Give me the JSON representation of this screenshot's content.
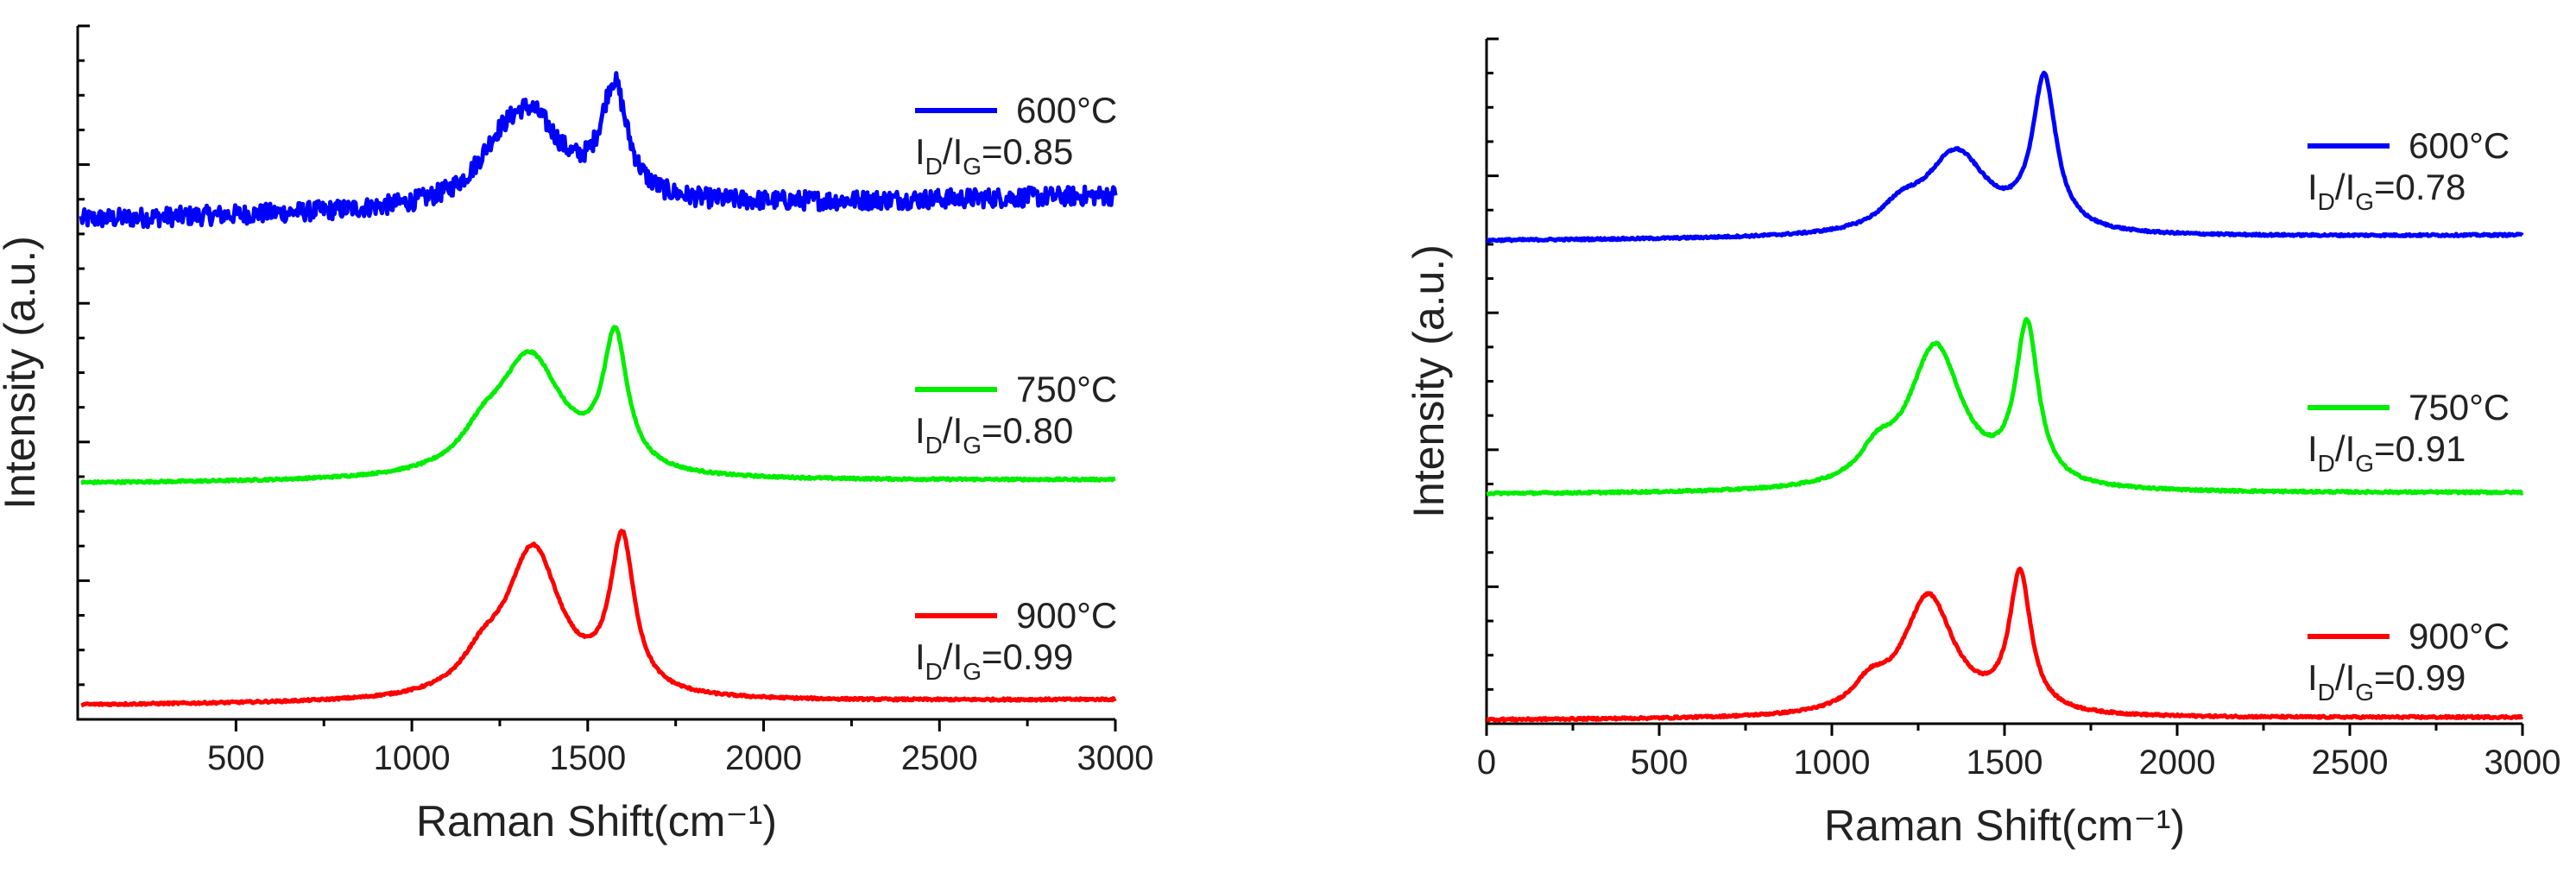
{
  "chart_data": [
    {
      "type": "line",
      "xlabel": "Raman Shift(cm⁻¹)",
      "ylabel": "Intensity (a.u.)",
      "xlim": [
        50,
        3000
      ],
      "ylim": [
        0,
        10
      ],
      "xticks": [
        "500",
        "1000",
        "1500",
        "2000",
        "2500",
        "3000"
      ],
      "series": [
        {
          "name": "600°C",
          "ratio_label": "I",
          "ratio_sub_d": "D",
          "ratio_sub_g": "G",
          "ratio_value": "=0.85",
          "color": "#0000ff",
          "noisy": true,
          "base": 7.35,
          "slope": 0.35,
          "offset": 7.2,
          "peaks": [
            {
              "x": 1335,
              "h": 1.3,
              "w": 110
            },
            {
              "x": 1575,
              "h": 1.6,
              "w": 45
            },
            {
              "x": 1240,
              "h": 0.35,
              "w": 70
            }
          ]
        },
        {
          "name": "750°C",
          "ratio_label": "I",
          "ratio_sub_d": "D",
          "ratio_sub_g": "G",
          "ratio_value": "=0.80",
          "color": "#00ee00",
          "noisy": false,
          "base": 3.45,
          "slope": 0.05,
          "offset": 3.4,
          "peaks": [
            {
              "x": 1335,
              "h": 1.75,
              "w": 115
            },
            {
              "x": 1578,
              "h": 1.9,
              "w": 42
            },
            {
              "x": 1200,
              "h": 0.35,
              "w": 70
            }
          ]
        },
        {
          "name": "900°C",
          "ratio_label": "I",
          "ratio_sub_d": "D",
          "ratio_sub_g": "G",
          "ratio_value": "=0.99",
          "color": "#ff0000",
          "noisy": false,
          "base": 0.25,
          "slope": 0.08,
          "offset": 0.2,
          "peaks": [
            {
              "x": 1345,
              "h": 2.15,
              "w": 95
            },
            {
              "x": 1598,
              "h": 2.2,
              "w": 42
            },
            {
              "x": 1200,
              "h": 0.4,
              "w": 70
            }
          ]
        }
      ]
    },
    {
      "type": "line",
      "xlabel": "Raman Shift(cm⁻¹)",
      "ylabel": "Intensity (a.u.)",
      "xlim": [
        0,
        3000
      ],
      "ylim": [
        0,
        10
      ],
      "xticks": [
        "0",
        "500",
        "1000",
        "1500",
        "2000",
        "2500",
        "3000"
      ],
      "series": [
        {
          "name": "600°C",
          "ratio_label": "I",
          "ratio_sub_d": "D",
          "ratio_sub_g": "G",
          "ratio_value": "=0.78",
          "color": "#0000ff",
          "noisy": false,
          "base": 7.2,
          "slope": 0.08,
          "offset": 7.05,
          "peaks": [
            {
              "x": 1360,
              "h": 1.2,
              "w": 110
            },
            {
              "x": 1615,
              "h": 2.2,
              "w": 42
            },
            {
              "x": 1200,
              "h": 0.3,
              "w": 70
            }
          ]
        },
        {
          "name": "750°C",
          "ratio_label": "I",
          "ratio_sub_d": "D",
          "ratio_sub_g": "G",
          "ratio_value": "=0.91",
          "color": "#00ee00",
          "noisy": false,
          "base": 3.4,
          "slope": 0.02,
          "offset": 3.35,
          "peaks": [
            {
              "x": 1300,
              "h": 2.1,
              "w": 95
            },
            {
              "x": 1565,
              "h": 2.3,
              "w": 40
            },
            {
              "x": 1130,
              "h": 0.4,
              "w": 60
            }
          ]
        },
        {
          "name": "900°C",
          "ratio_label": "I",
          "ratio_sub_d": "D",
          "ratio_sub_g": "G",
          "ratio_value": "=0.99",
          "color": "#ff0000",
          "noisy": false,
          "base": 0.1,
          "slope": 0.04,
          "offset": 0.05,
          "peaks": [
            {
              "x": 1280,
              "h": 1.75,
              "w": 90
            },
            {
              "x": 1545,
              "h": 2.0,
              "w": 38
            },
            {
              "x": 1110,
              "h": 0.35,
              "w": 60
            }
          ]
        }
      ]
    }
  ]
}
